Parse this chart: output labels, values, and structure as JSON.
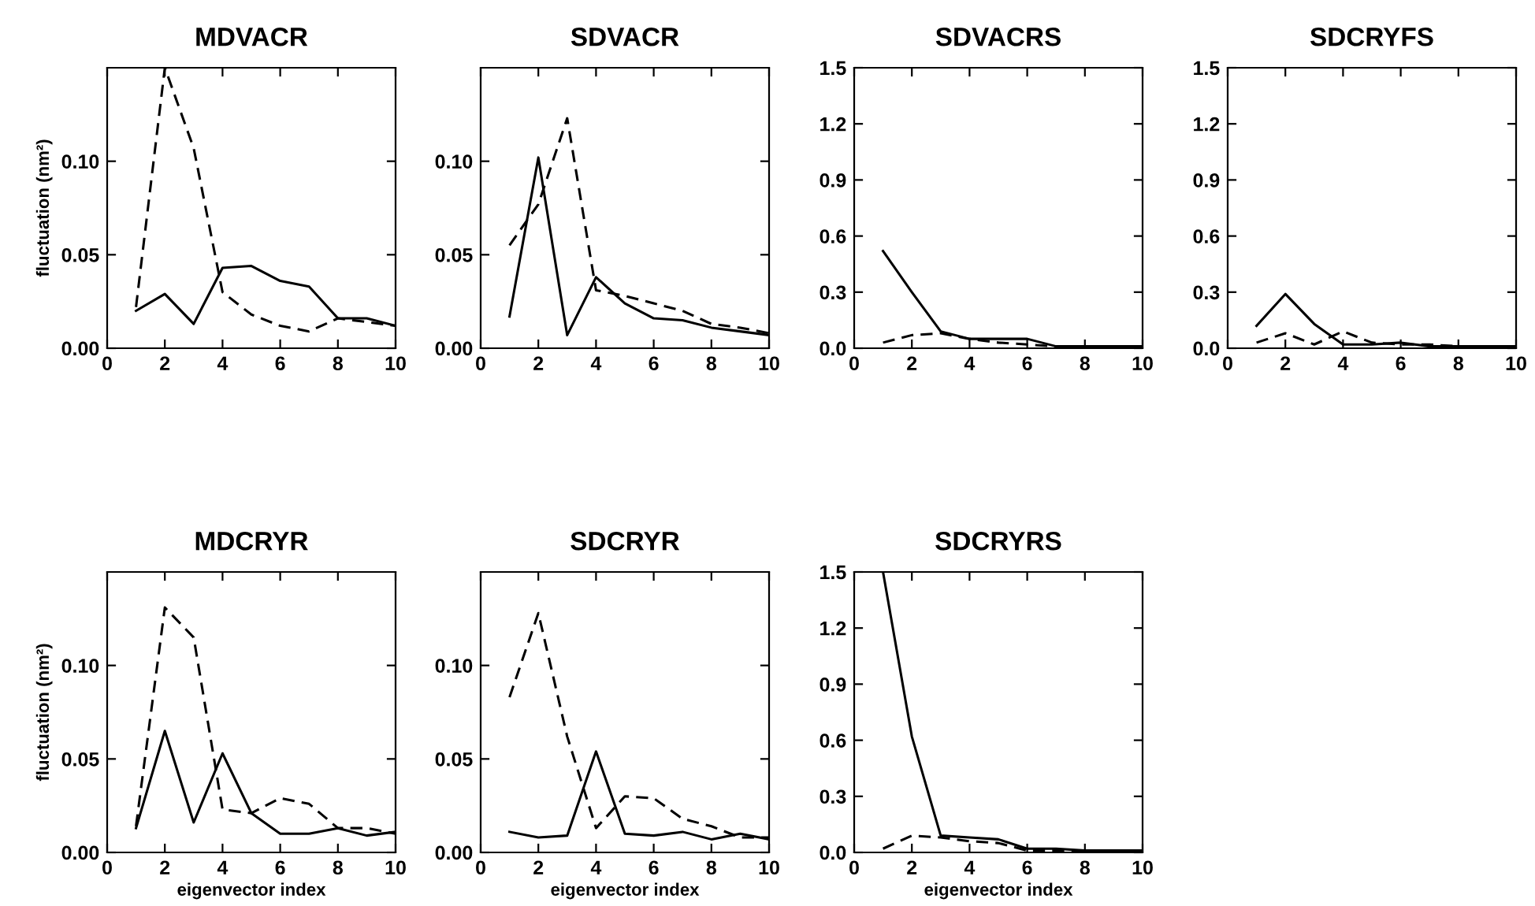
{
  "chart_data": [
    {
      "type": "line",
      "title": "MDVACR",
      "ylabel": "fluctuation (nm²)",
      "x": [
        1,
        2,
        3,
        4,
        5,
        6,
        7,
        8,
        9,
        10
      ],
      "xlim": [
        0,
        10
      ],
      "xticks": [
        0,
        2,
        4,
        6,
        8,
        10
      ],
      "ylim": [
        0,
        0.15
      ],
      "yticks": [
        {
          "value": 0,
          "label": "0.00"
        },
        {
          "value": 0.05,
          "label": "0.05"
        },
        {
          "value": 0.1,
          "label": "0.10"
        }
      ],
      "marker": "none",
      "series": [
        {
          "color": "#000000",
          "line_style": "solid",
          "values": [
            0.02,
            0.029,
            0.013,
            0.043,
            0.044,
            0.036,
            0.033,
            0.016,
            0.016,
            0.012
          ]
        },
        {
          "color": "#000000",
          "line_style": "dashed",
          "values": [
            0.022,
            0.15,
            0.107,
            0.03,
            0.018,
            0.012,
            0.009,
            0.016,
            0.014,
            0.012
          ]
        }
      ]
    },
    {
      "type": "line",
      "title": "SDVACR",
      "x": [
        1,
        2,
        3,
        4,
        5,
        6,
        7,
        8,
        9,
        10
      ],
      "xlim": [
        0,
        10
      ],
      "xticks": [
        0,
        2,
        4,
        6,
        8,
        10
      ],
      "ylim": [
        0,
        0.15
      ],
      "yticks": [
        {
          "value": 0,
          "label": "0.00"
        },
        {
          "value": 0.05,
          "label": "0.05"
        },
        {
          "value": 0.1,
          "label": "0.10"
        }
      ],
      "marker": "none",
      "series": [
        {
          "color": "#000000",
          "line_style": "solid",
          "values": [
            0.017,
            0.102,
            0.007,
            0.038,
            0.024,
            0.016,
            0.015,
            0.011,
            0.009,
            0.007
          ]
        },
        {
          "color": "#000000",
          "line_style": "dashed",
          "values": [
            0.055,
            0.077,
            0.123,
            0.031,
            0.028,
            0.024,
            0.02,
            0.013,
            0.011,
            0.008
          ]
        }
      ]
    },
    {
      "type": "line",
      "title": "SDVACRS",
      "x": [
        1,
        2,
        3,
        4,
        5,
        6,
        7,
        8,
        9,
        10
      ],
      "xlim": [
        0,
        10
      ],
      "xticks": [
        0,
        2,
        4,
        6,
        8,
        10
      ],
      "ylim": [
        0,
        1.5
      ],
      "yticks": [
        {
          "value": 0,
          "label": "0.0"
        },
        {
          "value": 0.3,
          "label": "0.3"
        },
        {
          "value": 0.6,
          "label": "0.6"
        },
        {
          "value": 0.9,
          "label": "0.9"
        },
        {
          "value": 1.2,
          "label": "1.2"
        },
        {
          "value": 1.5,
          "label": "1.5"
        }
      ],
      "marker": "none",
      "series": [
        {
          "color": "#000000",
          "line_style": "solid",
          "values": [
            0.52,
            0.3,
            0.09,
            0.05,
            0.05,
            0.05,
            0.01,
            0.01,
            0.01,
            0.01
          ]
        },
        {
          "color": "#000000",
          "line_style": "dashed",
          "values": [
            0.03,
            0.07,
            0.08,
            0.05,
            0.03,
            0.02,
            0.01,
            0.01,
            0.01,
            0.01
          ]
        }
      ]
    },
    {
      "type": "line",
      "title": "SDCRYFS",
      "x": [
        1,
        2,
        3,
        4,
        5,
        6,
        7,
        8,
        9,
        10
      ],
      "xlim": [
        0,
        10
      ],
      "xticks": [
        0,
        2,
        4,
        6,
        8,
        10
      ],
      "ylim": [
        0,
        1.5
      ],
      "yticks": [
        {
          "value": 0,
          "label": "0.0"
        },
        {
          "value": 0.3,
          "label": "0.3"
        },
        {
          "value": 0.6,
          "label": "0.6"
        },
        {
          "value": 0.9,
          "label": "0.9"
        },
        {
          "value": 1.2,
          "label": "1.2"
        },
        {
          "value": 1.5,
          "label": "1.5"
        }
      ],
      "marker": "none",
      "series": [
        {
          "color": "#000000",
          "line_style": "solid",
          "values": [
            0.12,
            0.29,
            0.13,
            0.02,
            0.02,
            0.03,
            0.01,
            0.01,
            0.01,
            0.01
          ]
        },
        {
          "color": "#000000",
          "line_style": "dashed",
          "values": [
            0.03,
            0.08,
            0.02,
            0.09,
            0.03,
            0.02,
            0.02,
            0.01,
            0.01,
            0.01
          ]
        }
      ]
    },
    {
      "type": "line",
      "title": "MDCRYR",
      "ylabel": "fluctuation (nm²)",
      "xlabel": "eigenvector index",
      "x": [
        1,
        2,
        3,
        4,
        5,
        6,
        7,
        8,
        9,
        10
      ],
      "xlim": [
        0,
        10
      ],
      "xticks": [
        0,
        2,
        4,
        6,
        8,
        10
      ],
      "ylim": [
        0,
        0.15
      ],
      "yticks": [
        {
          "value": 0,
          "label": "0.00"
        },
        {
          "value": 0.05,
          "label": "0.05"
        },
        {
          "value": 0.1,
          "label": "0.10"
        }
      ],
      "marker": "none",
      "series": [
        {
          "color": "#000000",
          "line_style": "solid",
          "values": [
            0.013,
            0.065,
            0.016,
            0.053,
            0.021,
            0.01,
            0.01,
            0.013,
            0.009,
            0.011
          ]
        },
        {
          "color": "#000000",
          "line_style": "dashed",
          "values": [
            0.014,
            0.131,
            0.115,
            0.023,
            0.021,
            0.029,
            0.026,
            0.013,
            0.013,
            0.01
          ]
        }
      ]
    },
    {
      "type": "line",
      "title": "SDCRYR",
      "xlabel": "eigenvector index",
      "x": [
        1,
        2,
        3,
        4,
        5,
        6,
        7,
        8,
        9,
        10
      ],
      "xlim": [
        0,
        10
      ],
      "xticks": [
        0,
        2,
        4,
        6,
        8,
        10
      ],
      "ylim": [
        0,
        0.15
      ],
      "yticks": [
        {
          "value": 0,
          "label": "0.00"
        },
        {
          "value": 0.05,
          "label": "0.05"
        },
        {
          "value": 0.1,
          "label": "0.10"
        }
      ],
      "marker": "none",
      "series": [
        {
          "color": "#000000",
          "line_style": "solid",
          "values": [
            0.011,
            0.008,
            0.009,
            0.054,
            0.01,
            0.009,
            0.011,
            0.007,
            0.01,
            0.007
          ]
        },
        {
          "color": "#000000",
          "line_style": "dashed",
          "values": [
            0.083,
            0.128,
            0.062,
            0.013,
            0.03,
            0.029,
            0.018,
            0.014,
            0.008,
            0.008
          ]
        }
      ]
    },
    {
      "type": "line",
      "title": "SDCRYRS",
      "xlabel": "eigenvector index",
      "x": [
        1,
        2,
        3,
        4,
        5,
        6,
        7,
        8,
        9,
        10
      ],
      "xlim": [
        0,
        10
      ],
      "xticks": [
        0,
        2,
        4,
        6,
        8,
        10
      ],
      "ylim": [
        0,
        1.5
      ],
      "yticks": [
        {
          "value": 0,
          "label": "0.0"
        },
        {
          "value": 0.3,
          "label": "0.3"
        },
        {
          "value": 0.6,
          "label": "0.6"
        },
        {
          "value": 0.9,
          "label": "0.9"
        },
        {
          "value": 1.2,
          "label": "1.2"
        },
        {
          "value": 1.5,
          "label": "1.5"
        }
      ],
      "marker": "none",
      "series": [
        {
          "color": "#000000",
          "line_style": "solid",
          "values": [
            1.5,
            0.62,
            0.09,
            0.08,
            0.07,
            0.02,
            0.02,
            0.01,
            0.01,
            0.01
          ]
        },
        {
          "color": "#000000",
          "line_style": "dashed",
          "values": [
            0.02,
            0.09,
            0.08,
            0.06,
            0.05,
            0.01,
            0.01,
            0.01,
            0.01,
            0.01
          ]
        }
      ]
    }
  ]
}
